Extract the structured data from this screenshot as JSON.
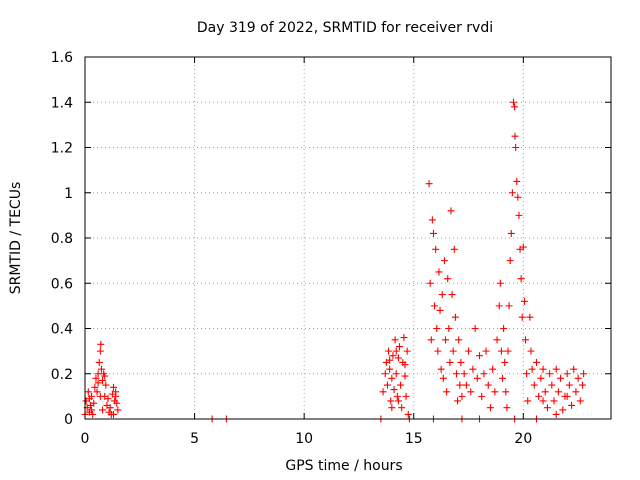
{
  "chart_data": {
    "type": "scatter",
    "title": "Day 319 of 2022, SRMTID for receiver rvdi",
    "xlabel": "GPS time / hours",
    "ylabel": "SRMTID / TECUs",
    "xlim": [
      0,
      24
    ],
    "ylim": [
      0,
      1.6
    ],
    "xticks": [
      0,
      5,
      10,
      15,
      20
    ],
    "xtick_labels": [
      "0",
      "5",
      "10",
      "15",
      "20"
    ],
    "yticks": [
      0,
      0.2,
      0.4,
      0.6,
      0.8,
      1,
      1.2,
      1.4,
      1.6
    ],
    "ytick_labels": [
      "0",
      "0.2",
      "0.4",
      "0.6",
      "0.8",
      "1",
      "1.2",
      "1.4",
      "1.6"
    ],
    "grid": true,
    "marker": "+",
    "color": "#ff0000",
    "series": [
      {
        "name": "rvdi",
        "points": [
          [
            0.0,
            0.02
          ],
          [
            0.05,
            0.08
          ],
          [
            0.1,
            0.05
          ],
          [
            0.15,
            0.12
          ],
          [
            0.2,
            0.03
          ],
          [
            0.25,
            0.06
          ],
          [
            0.3,
            0.1
          ],
          [
            0.35,
            0.02
          ],
          [
            0.4,
            0.07
          ],
          [
            0.45,
            0.14
          ],
          [
            0.5,
            0.18
          ],
          [
            0.55,
            0.12
          ],
          [
            0.6,
            0.2
          ],
          [
            0.65,
            0.25
          ],
          [
            0.7,
            0.3
          ],
          [
            0.72,
            0.33
          ],
          [
            0.75,
            0.22
          ],
          [
            0.8,
            0.17
          ],
          [
            0.85,
            0.2
          ],
          [
            0.9,
            0.1
          ],
          [
            0.95,
            0.15
          ],
          [
            1.0,
            0.06
          ],
          [
            1.05,
            0.09
          ],
          [
            1.1,
            0.03
          ],
          [
            1.15,
            0.05
          ],
          [
            1.2,
            0.02
          ],
          [
            1.25,
            0.11
          ],
          [
            1.3,
            0.14
          ],
          [
            1.35,
            0.08
          ],
          [
            1.4,
            0.12
          ],
          [
            1.45,
            0.07
          ],
          [
            1.5,
            0.04
          ],
          [
            0.6,
            0.16
          ],
          [
            0.7,
            0.1
          ],
          [
            0.8,
            0.04
          ],
          [
            0.3,
            0.04
          ],
          [
            0.2,
            0.09
          ],
          [
            1.3,
            0.02
          ],
          [
            1.4,
            0.1
          ],
          [
            0.9,
            0.19
          ],
          [
            5.8,
            0.0
          ],
          [
            6.45,
            0.0
          ],
          [
            13.5,
            0.0
          ],
          [
            13.6,
            0.12
          ],
          [
            13.7,
            0.2
          ],
          [
            13.75,
            0.25
          ],
          [
            13.8,
            0.15
          ],
          [
            13.85,
            0.3
          ],
          [
            13.9,
            0.22
          ],
          [
            13.95,
            0.08
          ],
          [
            14.0,
            0.18
          ],
          [
            14.05,
            0.28
          ],
          [
            14.1,
            0.13
          ],
          [
            14.15,
            0.35
          ],
          [
            14.2,
            0.2
          ],
          [
            14.25,
            0.1
          ],
          [
            14.3,
            0.27
          ],
          [
            14.35,
            0.32
          ],
          [
            14.4,
            0.15
          ],
          [
            14.45,
            0.05
          ],
          [
            14.5,
            0.25
          ],
          [
            14.55,
            0.36
          ],
          [
            14.6,
            0.19
          ],
          [
            14.65,
            0.1
          ],
          [
            14.7,
            0.3
          ],
          [
            14.75,
            0.02
          ],
          [
            14.8,
            0.0
          ],
          [
            14.0,
            0.05
          ],
          [
            14.3,
            0.08
          ],
          [
            14.6,
            0.24
          ],
          [
            13.9,
            0.26
          ],
          [
            14.2,
            0.3
          ],
          [
            15.7,
            1.04
          ],
          [
            15.75,
            0.6
          ],
          [
            15.8,
            0.35
          ],
          [
            15.85,
            0.88
          ],
          [
            15.9,
            0.82
          ],
          [
            15.95,
            0.5
          ],
          [
            16.0,
            0.75
          ],
          [
            16.05,
            0.4
          ],
          [
            16.1,
            0.3
          ],
          [
            16.15,
            0.65
          ],
          [
            16.2,
            0.48
          ],
          [
            16.25,
            0.22
          ],
          [
            16.3,
            0.55
          ],
          [
            16.35,
            0.18
          ],
          [
            16.4,
            0.7
          ],
          [
            16.45,
            0.35
          ],
          [
            16.5,
            0.12
          ],
          [
            16.55,
            0.62
          ],
          [
            16.6,
            0.4
          ],
          [
            16.65,
            0.25
          ],
          [
            16.7,
            0.92
          ],
          [
            16.75,
            0.55
          ],
          [
            16.8,
            0.3
          ],
          [
            16.85,
            0.75
          ],
          [
            16.9,
            0.45
          ],
          [
            16.95,
            0.2
          ],
          [
            17.0,
            0.08
          ],
          [
            17.05,
            0.35
          ],
          [
            17.1,
            0.15
          ],
          [
            17.15,
            0.25
          ],
          [
            17.2,
            0.1
          ],
          [
            17.3,
            0.2
          ],
          [
            17.4,
            0.15
          ],
          [
            17.5,
            0.3
          ],
          [
            17.6,
            0.12
          ],
          [
            17.7,
            0.22
          ],
          [
            17.8,
            0.4
          ],
          [
            17.9,
            0.18
          ],
          [
            18.0,
            0.28
          ],
          [
            18.1,
            0.1
          ],
          [
            18.2,
            0.2
          ],
          [
            18.3,
            0.3
          ],
          [
            18.4,
            0.15
          ],
          [
            18.5,
            0.05
          ],
          [
            18.6,
            0.22
          ],
          [
            18.7,
            0.12
          ],
          [
            18.8,
            0.35
          ],
          [
            18.9,
            0.5
          ],
          [
            18.95,
            0.6
          ],
          [
            19.0,
            0.3
          ],
          [
            19.05,
            0.18
          ],
          [
            19.1,
            0.4
          ],
          [
            19.15,
            0.25
          ],
          [
            19.2,
            0.12
          ],
          [
            19.25,
            0.05
          ],
          [
            19.3,
            0.3
          ],
          [
            19.35,
            0.5
          ],
          [
            19.4,
            0.7
          ],
          [
            19.45,
            0.82
          ],
          [
            19.5,
            1.0
          ],
          [
            19.55,
            1.4
          ],
          [
            19.6,
            1.38
          ],
          [
            19.62,
            1.25
          ],
          [
            19.65,
            1.2
          ],
          [
            19.7,
            1.05
          ],
          [
            19.75,
            0.98
          ],
          [
            19.8,
            0.9
          ],
          [
            19.85,
            0.75
          ],
          [
            19.9,
            0.62
          ],
          [
            19.95,
            0.45
          ],
          [
            20.0,
            0.76
          ],
          [
            20.05,
            0.52
          ],
          [
            20.1,
            0.35
          ],
          [
            20.15,
            0.2
          ],
          [
            20.2,
            0.08
          ],
          [
            20.3,
            0.45
          ],
          [
            20.35,
            0.3
          ],
          [
            20.4,
            0.22
          ],
          [
            20.5,
            0.15
          ],
          [
            20.6,
            0.25
          ],
          [
            20.7,
            0.1
          ],
          [
            20.8,
            0.18
          ],
          [
            20.9,
            0.22
          ],
          [
            21.0,
            0.12
          ],
          [
            21.1,
            0.05
          ],
          [
            21.2,
            0.2
          ],
          [
            21.3,
            0.15
          ],
          [
            21.4,
            0.08
          ],
          [
            21.5,
            0.22
          ],
          [
            21.6,
            0.12
          ],
          [
            21.7,
            0.18
          ],
          [
            21.8,
            0.04
          ],
          [
            21.9,
            0.1
          ],
          [
            22.0,
            0.2
          ],
          [
            22.1,
            0.15
          ],
          [
            22.2,
            0.06
          ],
          [
            22.3,
            0.22
          ],
          [
            22.4,
            0.12
          ],
          [
            22.5,
            0.18
          ],
          [
            22.6,
            0.08
          ],
          [
            22.7,
            0.15
          ],
          [
            22.75,
            0.2
          ],
          [
            20.6,
            0.0
          ],
          [
            20.9,
            0.08
          ],
          [
            21.5,
            0.02
          ],
          [
            22.0,
            0.1
          ],
          [
            15.9,
            0.0
          ],
          [
            17.2,
            0.0
          ],
          [
            18.0,
            0.0
          ],
          [
            19.6,
            0.0
          ]
        ]
      }
    ]
  }
}
